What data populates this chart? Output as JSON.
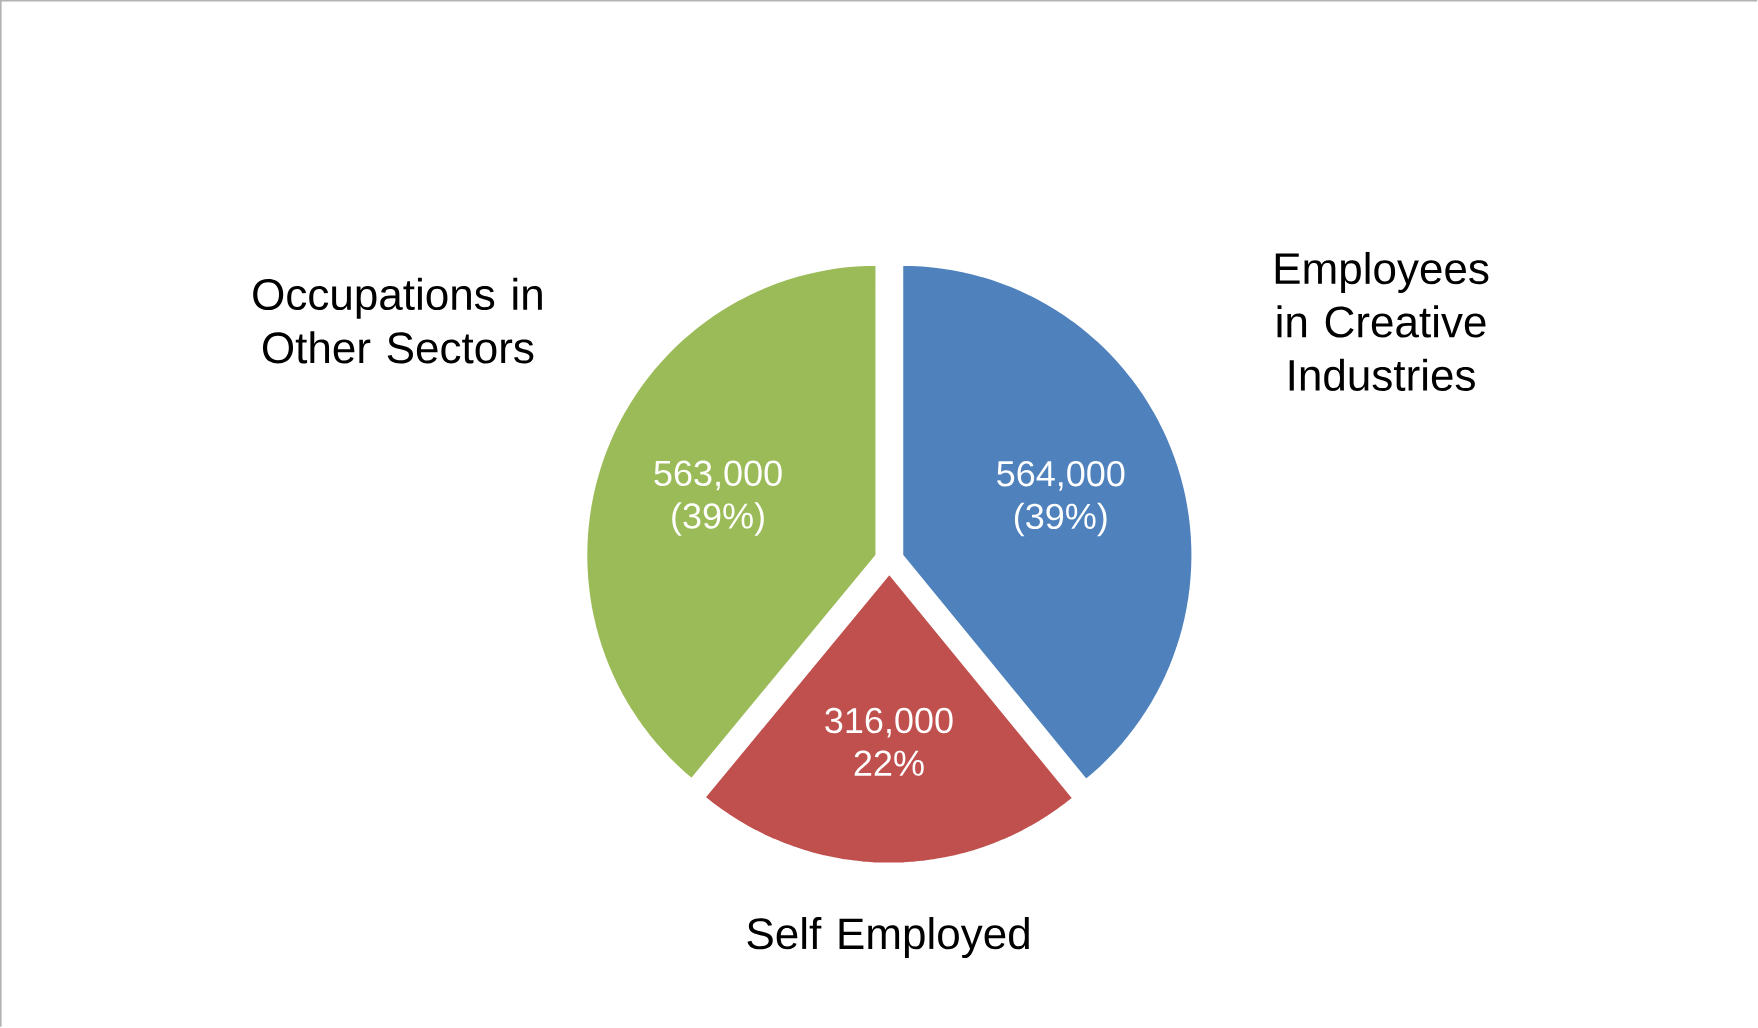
{
  "chart_data": {
    "type": "pie",
    "categories": [
      "Employees in Creative Industries",
      "Self Employed",
      "Occupations in Other Sectors"
    ],
    "values": [
      564000,
      316000,
      563000
    ],
    "colors": [
      "#4f81bd",
      "#c0504d",
      "#9bbb59"
    ],
    "value_labels": [
      "564,000 (39%)",
      "316,000 22%",
      "563,000 (39%)"
    ]
  }
}
